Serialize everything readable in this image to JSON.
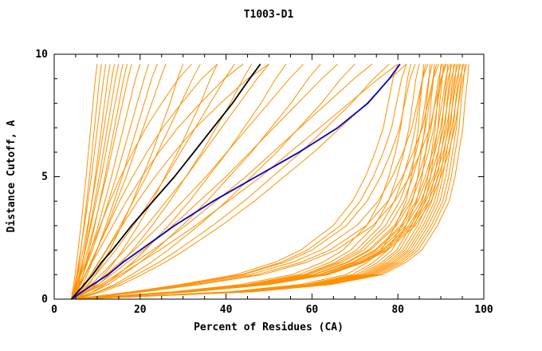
{
  "chart_data": {
    "type": "line",
    "title": "T1003-D1",
    "xlabel": "Percent of Residues (CA)",
    "ylabel": "Distance Cutoff, A",
    "xlim": [
      0,
      100
    ],
    "ylim": [
      0,
      10
    ],
    "xticks": [
      0,
      20,
      40,
      60,
      80,
      100
    ],
    "yticks": [
      0,
      5,
      10
    ],
    "x_minor_step": 5,
    "y_minor_step": 1,
    "grid": false,
    "legend": "none",
    "frame_color": "#000000",
    "background": "#ffffff",
    "highlight_series": [
      {
        "name": "black-model",
        "color": "#000000",
        "width": 1.8,
        "y": [
          0,
          0.3,
          0.6,
          1,
          1.5,
          2,
          3,
          4,
          5,
          6,
          7,
          8,
          9,
          9.6
        ],
        "x": [
          4,
          5.5,
          7,
          9,
          11,
          13.5,
          18,
          23,
          28,
          32.5,
          37,
          41.5,
          45.5,
          48
        ]
      },
      {
        "name": "blue-model",
        "color": "#0000cd",
        "width": 1.8,
        "y": [
          0,
          0.3,
          0.6,
          1,
          1.5,
          2,
          3,
          4,
          5,
          6,
          7,
          8,
          9,
          9.6
        ],
        "x": [
          4,
          6.5,
          9,
          12.5,
          16,
          20,
          28,
          37,
          47,
          57,
          66,
          73,
          78,
          80.5
        ]
      }
    ],
    "ensemble": {
      "name": "server-models-orange",
      "color": "#ff9000",
      "width": 1,
      "y_grid": [
        0,
        0.3,
        0.6,
        1,
        1.5,
        2,
        3,
        4,
        5,
        6,
        7,
        8,
        9,
        9.6
      ],
      "shapes": {
        "fastR": [
          0,
          0.45,
          0.65,
          0.78,
          0.84,
          0.88,
          0.92,
          0.95,
          0.965,
          0.975,
          0.985,
          0.99,
          0.997,
          1
        ],
        "medR": [
          0,
          0.3,
          0.5,
          0.65,
          0.74,
          0.8,
          0.87,
          0.91,
          0.935,
          0.955,
          0.97,
          0.98,
          0.99,
          1
        ],
        "slowR": [
          0,
          0.18,
          0.33,
          0.5,
          0.62,
          0.7,
          0.8,
          0.86,
          0.9,
          0.93,
          0.955,
          0.97,
          0.985,
          1
        ],
        "diag": [
          0,
          0.05,
          0.1,
          0.15,
          0.21,
          0.27,
          0.38,
          0.48,
          0.58,
          0.67,
          0.76,
          0.85,
          0.94,
          1
        ],
        "diag2": [
          0,
          0.08,
          0.14,
          0.2,
          0.27,
          0.33,
          0.44,
          0.54,
          0.63,
          0.72,
          0.8,
          0.88,
          0.95,
          1
        ],
        "left": [
          0,
          0.04,
          0.09,
          0.14,
          0.2,
          0.26,
          0.37,
          0.47,
          0.57,
          0.66,
          0.75,
          0.84,
          0.93,
          1
        ],
        "leftArc": [
          0,
          0.02,
          0.05,
          0.08,
          0.12,
          0.16,
          0.24,
          0.32,
          0.41,
          0.51,
          0.62,
          0.75,
          0.89,
          1
        ]
      },
      "curves": [
        {
          "x0": 4.5,
          "xtop": 80,
          "shape": "slowR"
        },
        {
          "x0": 5,
          "xtop": 82,
          "shape": "slowR"
        },
        {
          "x0": 4,
          "xtop": 83,
          "shape": "medR"
        },
        {
          "x0": 4,
          "xtop": 84,
          "shape": "slowR"
        },
        {
          "x0": 5,
          "xtop": 85,
          "shape": "medR"
        },
        {
          "x0": 4,
          "xtop": 86,
          "shape": "fastR"
        },
        {
          "x0": 5.5,
          "xtop": 86.5,
          "shape": "medR"
        },
        {
          "x0": 4,
          "xtop": 87,
          "shape": "slowR"
        },
        {
          "x0": 5,
          "xtop": 87.5,
          "shape": "fastR"
        },
        {
          "x0": 4,
          "xtop": 88,
          "shape": "medR"
        },
        {
          "x0": 6,
          "xtop": 88.5,
          "shape": "fastR"
        },
        {
          "x0": 4,
          "xtop": 89,
          "shape": "medR"
        },
        {
          "x0": 5,
          "xtop": 89.5,
          "shape": "slowR"
        },
        {
          "x0": 4,
          "xtop": 90,
          "shape": "fastR"
        },
        {
          "x0": 4.5,
          "xtop": 90.3,
          "shape": "medR"
        },
        {
          "x0": 5,
          "xtop": 90.6,
          "shape": "fastR"
        },
        {
          "x0": 4,
          "xtop": 91,
          "shape": "medR"
        },
        {
          "x0": 5.5,
          "xtop": 91.3,
          "shape": "slowR"
        },
        {
          "x0": 4,
          "xtop": 91.6,
          "shape": "fastR"
        },
        {
          "x0": 5,
          "xtop": 92,
          "shape": "medR"
        },
        {
          "x0": 4,
          "xtop": 92.3,
          "shape": "fastR"
        },
        {
          "x0": 4.5,
          "xtop": 92.6,
          "shape": "medR"
        },
        {
          "x0": 4,
          "xtop": 93,
          "shape": "fastR"
        },
        {
          "x0": 5,
          "xtop": 93.3,
          "shape": "medR"
        },
        {
          "x0": 4,
          "xtop": 93.6,
          "shape": "fastR"
        },
        {
          "x0": 5.5,
          "xtop": 94,
          "shape": "medR"
        },
        {
          "x0": 4,
          "xtop": 94.3,
          "shape": "fastR"
        },
        {
          "x0": 5,
          "xtop": 94.6,
          "shape": "medR"
        },
        {
          "x0": 4,
          "xtop": 95,
          "shape": "fastR"
        },
        {
          "x0": 4.5,
          "xtop": 95.3,
          "shape": "medR"
        },
        {
          "x0": 5,
          "xtop": 95.6,
          "shape": "fastR"
        },
        {
          "x0": 4,
          "xtop": 96,
          "shape": "medR"
        },
        {
          "x0": 5,
          "xtop": 96.5,
          "shape": "fastR"
        },
        {
          "x0": 4,
          "xtop": 26,
          "shape": "diag"
        },
        {
          "x0": 4.5,
          "xtop": 30,
          "shape": "diag2"
        },
        {
          "x0": 4,
          "xtop": 34,
          "shape": "diag"
        },
        {
          "x0": 5,
          "xtop": 38,
          "shape": "diag2"
        },
        {
          "x0": 4,
          "xtop": 42,
          "shape": "diag"
        },
        {
          "x0": 4.5,
          "xtop": 46,
          "shape": "diag2"
        },
        {
          "x0": 4,
          "xtop": 50,
          "shape": "diag"
        },
        {
          "x0": 5,
          "xtop": 54,
          "shape": "diag2"
        },
        {
          "x0": 4,
          "xtop": 58,
          "shape": "diag"
        },
        {
          "x0": 4.5,
          "xtop": 62,
          "shape": "diag2"
        },
        {
          "x0": 4,
          "xtop": 66,
          "shape": "diag"
        },
        {
          "x0": 5,
          "xtop": 70,
          "shape": "diag2"
        },
        {
          "x0": 4,
          "xtop": 74,
          "shape": "diag"
        },
        {
          "x0": 4.5,
          "xtop": 78,
          "shape": "diag2"
        },
        {
          "x0": 4,
          "xtop": 80,
          "shape": "diag"
        },
        {
          "x0": 5,
          "xtop": 82,
          "shape": "diag2"
        },
        {
          "x0": 4,
          "xtop": 32,
          "shape": "leftArc"
        },
        {
          "x0": 4.5,
          "xtop": 38,
          "shape": "leftArc"
        },
        {
          "x0": 4,
          "xtop": 44,
          "shape": "leftArc"
        },
        {
          "x0": 5,
          "xtop": 50,
          "shape": "leftArc"
        },
        {
          "x0": 4,
          "xtop": 10,
          "shape": "left"
        },
        {
          "x0": 4.5,
          "xtop": 11,
          "shape": "left"
        },
        {
          "x0": 4,
          "xtop": 12,
          "shape": "diag"
        },
        {
          "x0": 5,
          "xtop": 13,
          "shape": "left"
        },
        {
          "x0": 4,
          "xtop": 14,
          "shape": "diag"
        },
        {
          "x0": 4.5,
          "xtop": 15,
          "shape": "left"
        },
        {
          "x0": 4,
          "xtop": 16,
          "shape": "diag"
        },
        {
          "x0": 5,
          "xtop": 17,
          "shape": "left"
        },
        {
          "x0": 4,
          "xtop": 18,
          "shape": "diag"
        },
        {
          "x0": 4.5,
          "xtop": 20,
          "shape": "left"
        },
        {
          "x0": 4,
          "xtop": 22,
          "shape": "diag"
        },
        {
          "x0": 5,
          "xtop": 24,
          "shape": "left"
        }
      ]
    }
  }
}
